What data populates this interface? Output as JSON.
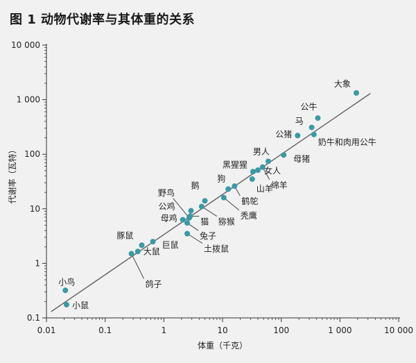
{
  "title": "图 1  动物代谢率与其体重的关系",
  "chart_data": {
    "type": "scatter",
    "xlabel": "体重（千克）",
    "ylabel": "代谢率（瓦特）",
    "xscale": "log",
    "yscale": "log",
    "xlim": [
      0.01,
      10000
    ],
    "ylim": [
      0.1,
      10000
    ],
    "xticks": [
      0.01,
      0.1,
      1,
      10,
      100,
      1000,
      10000
    ],
    "xtick_labels": [
      "0.01",
      "0.1",
      "1",
      "10",
      "100",
      "1 000",
      "10 000"
    ],
    "yticks": [
      0.1,
      1,
      10,
      100,
      1000,
      10000
    ],
    "ytick_labels": [
      "0.1",
      "1",
      "10",
      "100",
      "1 000",
      "10 000"
    ],
    "point_color": "#3a9aa4",
    "line_color": "#666666",
    "trend_line": {
      "x": [
        0.012,
        3300
      ],
      "y": [
        0.13,
        1300
      ]
    },
    "points": [
      {
        "name": "小鸟",
        "x": 0.021,
        "y": 0.32
      },
      {
        "name": "小鼠",
        "x": 0.022,
        "y": 0.175
      },
      {
        "name": "鸽子",
        "x": 0.28,
        "y": 1.5
      },
      {
        "name": "大鼠",
        "x": 0.36,
        "y": 1.65
      },
      {
        "name": "豚鼠",
        "x": 0.42,
        "y": 2.15
      },
      {
        "name": "巨鼠",
        "x": 0.65,
        "y": 2.5
      },
      {
        "name": "母鸡",
        "x": 2.1,
        "y": 6.3
      },
      {
        "name": "土拨鼠",
        "x": 2.5,
        "y": 3.5
      },
      {
        "name": "兔子",
        "x": 2.5,
        "y": 5.5
      },
      {
        "name": "野鸟",
        "x": 2.7,
        "y": 6.8
      },
      {
        "name": "猫",
        "x": 2.8,
        "y": 7.3
      },
      {
        "name": "公鸡",
        "x": 2.9,
        "y": 9.2
      },
      {
        "name": "猕猴",
        "x": 4.4,
        "y": 11
      },
      {
        "name": "鹅",
        "x": 5.0,
        "y": 14
      },
      {
        "name": "秃鹰",
        "x": 10.5,
        "y": 16
      },
      {
        "name": "狗",
        "x": 12.5,
        "y": 23
      },
      {
        "name": "鹤鸵",
        "x": 16,
        "y": 26
      },
      {
        "name": "山羊",
        "x": 32,
        "y": 35
      },
      {
        "name": "黑猩猩",
        "x": 33,
        "y": 48
      },
      {
        "name": "女人",
        "x": 40,
        "y": 51
      },
      {
        "name": "绵羊",
        "x": 48,
        "y": 58
      },
      {
        "name": "男人",
        "x": 60,
        "y": 74
      },
      {
        "name": "母猪",
        "x": 110,
        "y": 97
      },
      {
        "name": "公猪",
        "x": 190,
        "y": 220
      },
      {
        "name": "马",
        "x": 330,
        "y": 310
      },
      {
        "name": "奶牛和肉用公牛",
        "x": 360,
        "y": 230
      },
      {
        "name": "公牛",
        "x": 420,
        "y": 460
      },
      {
        "name": "大象",
        "x": 1900,
        "y": 1330
      }
    ]
  }
}
